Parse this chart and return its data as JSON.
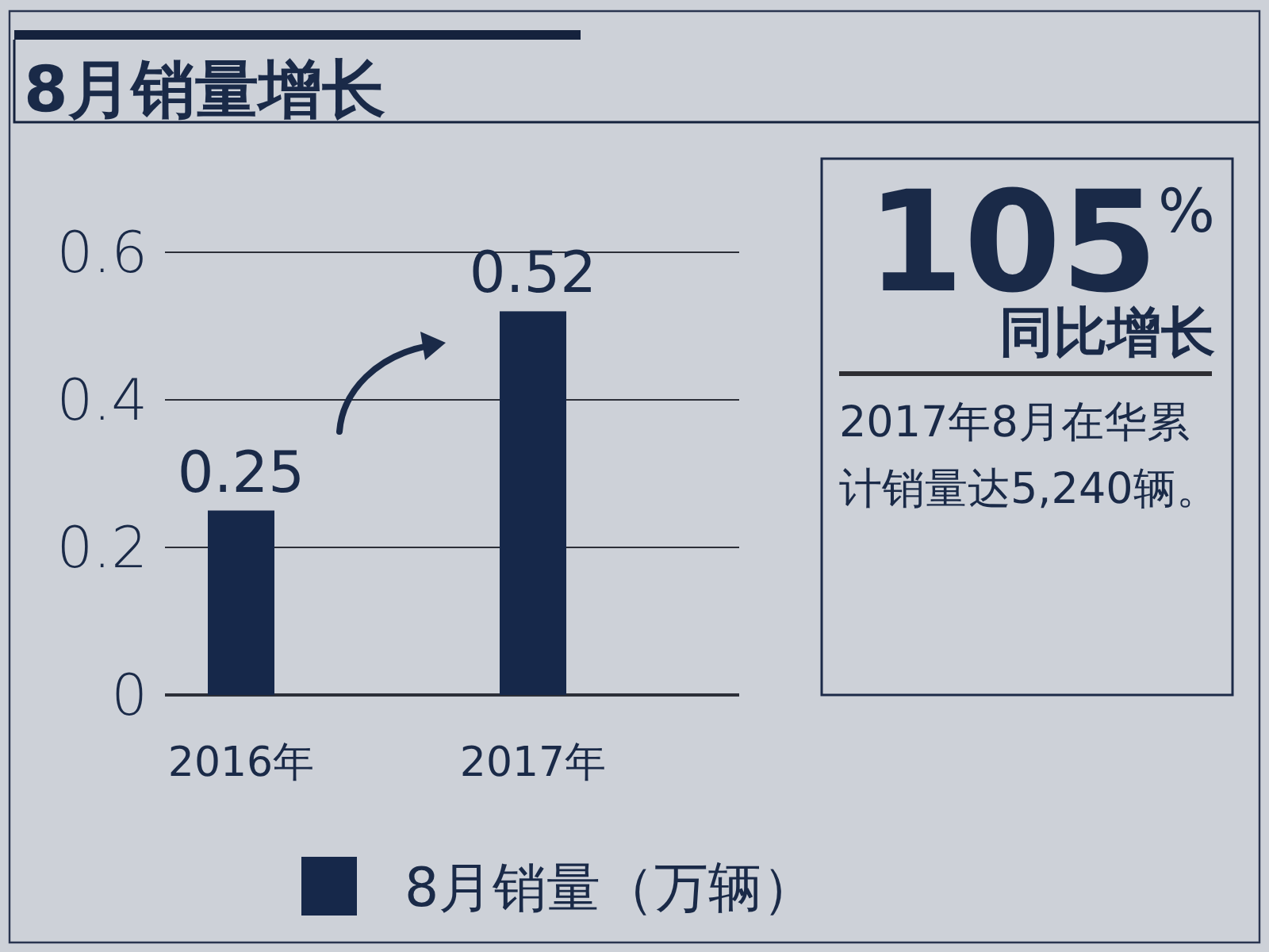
{
  "chart_data": {
    "type": "bar",
    "title": "8月销量增长",
    "categories": [
      "2016年",
      "2017年"
    ],
    "series": [
      {
        "name": "8月销量（万辆）",
        "color": "#16284a",
        "values": [
          0.25,
          0.52
        ]
      }
    ],
    "ylim": [
      0,
      0.6
    ],
    "yticks": [
      0,
      0.2,
      0.4,
      0.6
    ],
    "grid": "y",
    "legend": "bottom",
    "data_labels": true,
    "annotations": [
      "105$^{%}$",
      "同比增长",
      "2017年8月在华累计销量达5,240辆。"
    ]
  }
}
